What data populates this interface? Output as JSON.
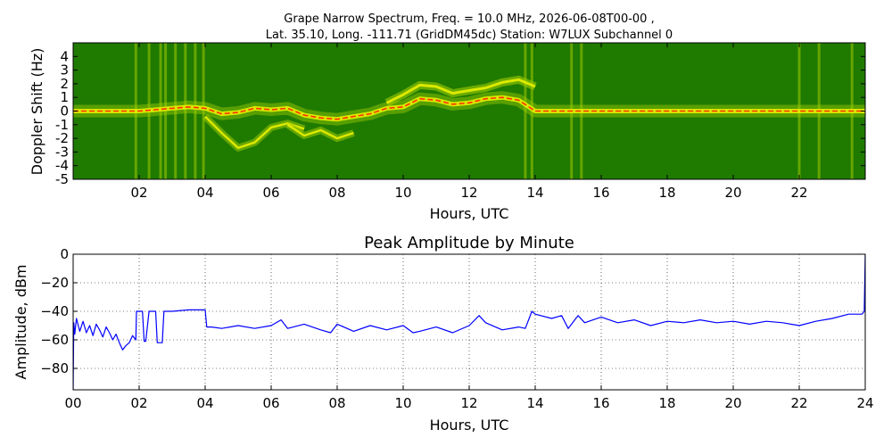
{
  "figure": {
    "background": "#ffffff"
  },
  "chart_data": [
    {
      "type": "heatmap",
      "title_line1": "Grape Narrow Spectrum, Freq. = 10.0 MHz, 2026-06-08T00-00 ,",
      "title_line2": "Lat.  35.10, Long. -111.71 (GridDM45dc) Station: W7LUX Subchannel 0",
      "xlabel": "Hours, UTC",
      "ylabel": "Doppler Shift (Hz)",
      "xlim": [
        0,
        24
      ],
      "ylim": [
        -5,
        5
      ],
      "xticks": [
        2,
        4,
        6,
        8,
        10,
        12,
        14,
        16,
        18,
        20,
        22
      ],
      "xtick_labels": [
        "02",
        "04",
        "06",
        "08",
        "10",
        "12",
        "14",
        "16",
        "18",
        "20",
        "22"
      ],
      "yticks": [
        4,
        3,
        2,
        1,
        0,
        -1,
        -2,
        -3,
        -4,
        -5
      ],
      "ytick_labels": [
        "4",
        "3",
        "2",
        "1",
        "0",
        "-1",
        "-2",
        "-3",
        "-4",
        "-5"
      ],
      "colors": {
        "background": "#1f7a00",
        "mid": "#9ecb00",
        "high": "#e8f000",
        "peak": "#ff2a00"
      },
      "carrier_trace": {
        "x": [
          0,
          1,
          2,
          2.5,
          3,
          3.5,
          4,
          4.5,
          5,
          5.5,
          6,
          6.5,
          7,
          7.5,
          8,
          8.5,
          9,
          9.5,
          10,
          10.5,
          11,
          11.5,
          12,
          12.5,
          13,
          13.5,
          14,
          15,
          16,
          17,
          18,
          19,
          20,
          21,
          22,
          23,
          24
        ],
        "y": [
          0,
          0,
          0,
          0.1,
          0.2,
          0.3,
          0.2,
          -0.2,
          -0.1,
          0.2,
          0.1,
          0.2,
          -0.3,
          -0.5,
          -0.6,
          -0.4,
          -0.2,
          0.2,
          0.3,
          0.9,
          0.8,
          0.5,
          0.6,
          0.9,
          1.0,
          0.8,
          0,
          0,
          0,
          0,
          0,
          0,
          0,
          0,
          0,
          0,
          0
        ]
      },
      "upper_trace": {
        "x": [
          9.5,
          10,
          10.5,
          11,
          11.5,
          12,
          12.5,
          13,
          13.5,
          14
        ],
        "y": [
          0.6,
          1.2,
          1.9,
          1.8,
          1.3,
          1.5,
          1.7,
          2.1,
          2.3,
          1.8
        ]
      },
      "lower_traces": [
        {
          "x": [
            4,
            4.5,
            5,
            5.5,
            6,
            6.5,
            7
          ],
          "y": [
            -0.4,
            -1.6,
            -2.7,
            -2.3,
            -1.2,
            -0.9,
            -1.3
          ]
        },
        {
          "x": [
            6.5,
            7,
            7.5,
            8,
            8.5
          ],
          "y": [
            -1.0,
            -1.8,
            -1.4,
            -2.0,
            -1.6
          ]
        }
      ],
      "vertical_stripes": [
        1.9,
        2.3,
        2.65,
        2.8,
        3.1,
        3.4,
        3.7,
        3.95,
        13.7,
        13.9,
        15.1,
        15.4,
        22,
        22.6,
        23.6
      ]
    },
    {
      "type": "line",
      "title": "Peak Amplitude by Minute",
      "xlabel": "Hours, UTC",
      "ylabel": "Amplitude, dBm",
      "xlim": [
        0,
        24
      ],
      "ylim": [
        -95,
        0
      ],
      "xticks": [
        0,
        2,
        4,
        6,
        8,
        10,
        12,
        14,
        16,
        18,
        20,
        22,
        24
      ],
      "xtick_labels": [
        "00",
        "02",
        "04",
        "06",
        "08",
        "10",
        "12",
        "14",
        "16",
        "18",
        "20",
        "22",
        "24"
      ],
      "yticks": [
        0,
        -20,
        -40,
        -60,
        -80
      ],
      "ytick_labels": [
        "0",
        "−20",
        "−40",
        "−60",
        "−80"
      ],
      "grid": true,
      "series_color": "#0000ff",
      "series": [
        {
          "x": [
            0,
            0.02,
            0.05,
            0.1,
            0.2,
            0.3,
            0.4,
            0.5,
            0.6,
            0.7,
            0.8,
            0.9,
            1.0,
            1.1,
            1.2,
            1.3,
            1.4,
            1.5,
            1.6,
            1.7,
            1.8,
            1.9,
            1.92,
            2.0,
            2.1,
            2.15,
            2.2,
            2.3,
            2.4,
            2.5,
            2.55,
            2.6,
            2.7,
            2.75,
            2.8,
            3.0,
            3.5,
            4.0,
            4.05,
            4.2,
            4.5,
            5.0,
            5.5,
            6.0,
            6.3,
            6.5,
            7.0,
            7.5,
            7.8,
            8.0,
            8.5,
            9.0,
            9.5,
            10.0,
            10.3,
            10.5,
            11.0,
            11.5,
            12.0,
            12.3,
            12.5,
            13.0,
            13.5,
            13.7,
            13.9,
            14.0,
            14.5,
            14.8,
            15.0,
            15.3,
            15.5,
            16.0,
            16.5,
            17.0,
            17.5,
            18.0,
            18.5,
            19.0,
            19.5,
            20.0,
            20.5,
            21.0,
            21.5,
            22.0,
            22.5,
            23.0,
            23.5,
            23.9,
            23.97,
            24.0
          ],
          "y": [
            -95,
            -48,
            -56,
            -45,
            -54,
            -47,
            -55,
            -50,
            -57,
            -49,
            -53,
            -58,
            -51,
            -55,
            -60,
            -56,
            -62,
            -67,
            -64,
            -62,
            -57,
            -60,
            -40,
            -40,
            -40,
            -61,
            -61,
            -40,
            -40,
            -40,
            -62,
            -62,
            -62,
            -40,
            -40,
            -40,
            -39,
            -39,
            -51,
            -51,
            -52,
            -50,
            -52,
            -50,
            -46,
            -52,
            -49,
            -53,
            -55,
            -49,
            -54,
            -50,
            -53,
            -50,
            -55,
            -54,
            -51,
            -55,
            -50,
            -43,
            -48,
            -53,
            -51,
            -52,
            -40,
            -42,
            -45,
            -43,
            -52,
            -43,
            -48,
            -44,
            -48,
            -46,
            -50,
            -47,
            -48,
            -46,
            -48,
            -47,
            -49,
            -47,
            -48,
            -50,
            -47,
            -45,
            -42,
            -42,
            -40,
            0
          ]
        }
      ]
    }
  ]
}
